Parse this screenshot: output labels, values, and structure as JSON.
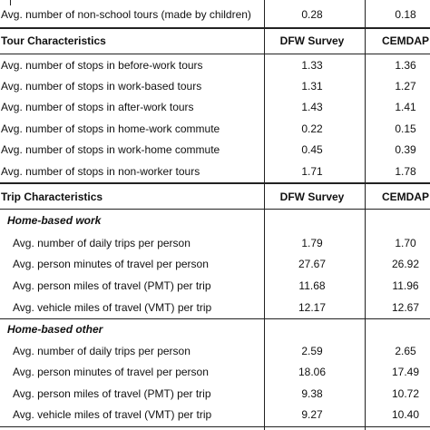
{
  "top_row": {
    "label": "Avg. number  of non-school tours (made by  children)",
    "dfw": "0.28",
    "cemdap": "0.18"
  },
  "tour_section": {
    "header": "Tour Characteristics",
    "col_dfw": "DFW Survey",
    "col_cemdap": "CEMDAP",
    "rows": [
      {
        "label": "Avg. number of stops in before-work tours",
        "dfw": "1.33",
        "cemdap": "1.36"
      },
      {
        "label": "Avg. number of stops in work-based tours",
        "dfw": "1.31",
        "cemdap": "1.27"
      },
      {
        "label": "Avg. number of stops in after-work tours",
        "dfw": "1.43",
        "cemdap": "1.41"
      },
      {
        "label": "Avg. number of stops in home-work commute",
        "dfw": "0.22",
        "cemdap": "0.15"
      },
      {
        "label": "Avg. number of stops in work-home commute",
        "dfw": "0.45",
        "cemdap": "0.39"
      },
      {
        "label": "Avg. number of stops in non-worker tours",
        "dfw": "1.71",
        "cemdap": "1.78"
      }
    ]
  },
  "trip_section": {
    "header": "Trip Characteristics",
    "col_dfw": "DFW Survey",
    "col_cemdap": "CEMDAP",
    "groups": [
      {
        "title": "Home-based work",
        "rows": [
          {
            "label": "Avg. number of daily trips per person",
            "dfw": "1.79",
            "cemdap": "1.70"
          },
          {
            "label": "Avg. person minutes of travel per person",
            "dfw": "27.67",
            "cemdap": "26.92"
          },
          {
            "label": "Avg. person miles of travel (PMT) per trip",
            "dfw": "11.68",
            "cemdap": "11.96"
          },
          {
            "label": "Avg. vehicle miles of travel (VMT) per trip",
            "dfw": "12.17",
            "cemdap": "12.67"
          }
        ]
      },
      {
        "title": "Home-based other",
        "rows": [
          {
            "label": "Avg. number of daily trips per person",
            "dfw": "2.59",
            "cemdap": "2.65"
          },
          {
            "label": "Avg. person minutes of travel per person",
            "dfw": "18.06",
            "cemdap": "17.49"
          },
          {
            "label": "Avg. person miles of travel (PMT) per trip",
            "dfw": "9.38",
            "cemdap": "10.72"
          },
          {
            "label": "Avg. vehicle miles of travel (VMT) per trip",
            "dfw": "9.27",
            "cemdap": "10.40"
          }
        ]
      }
    ]
  }
}
